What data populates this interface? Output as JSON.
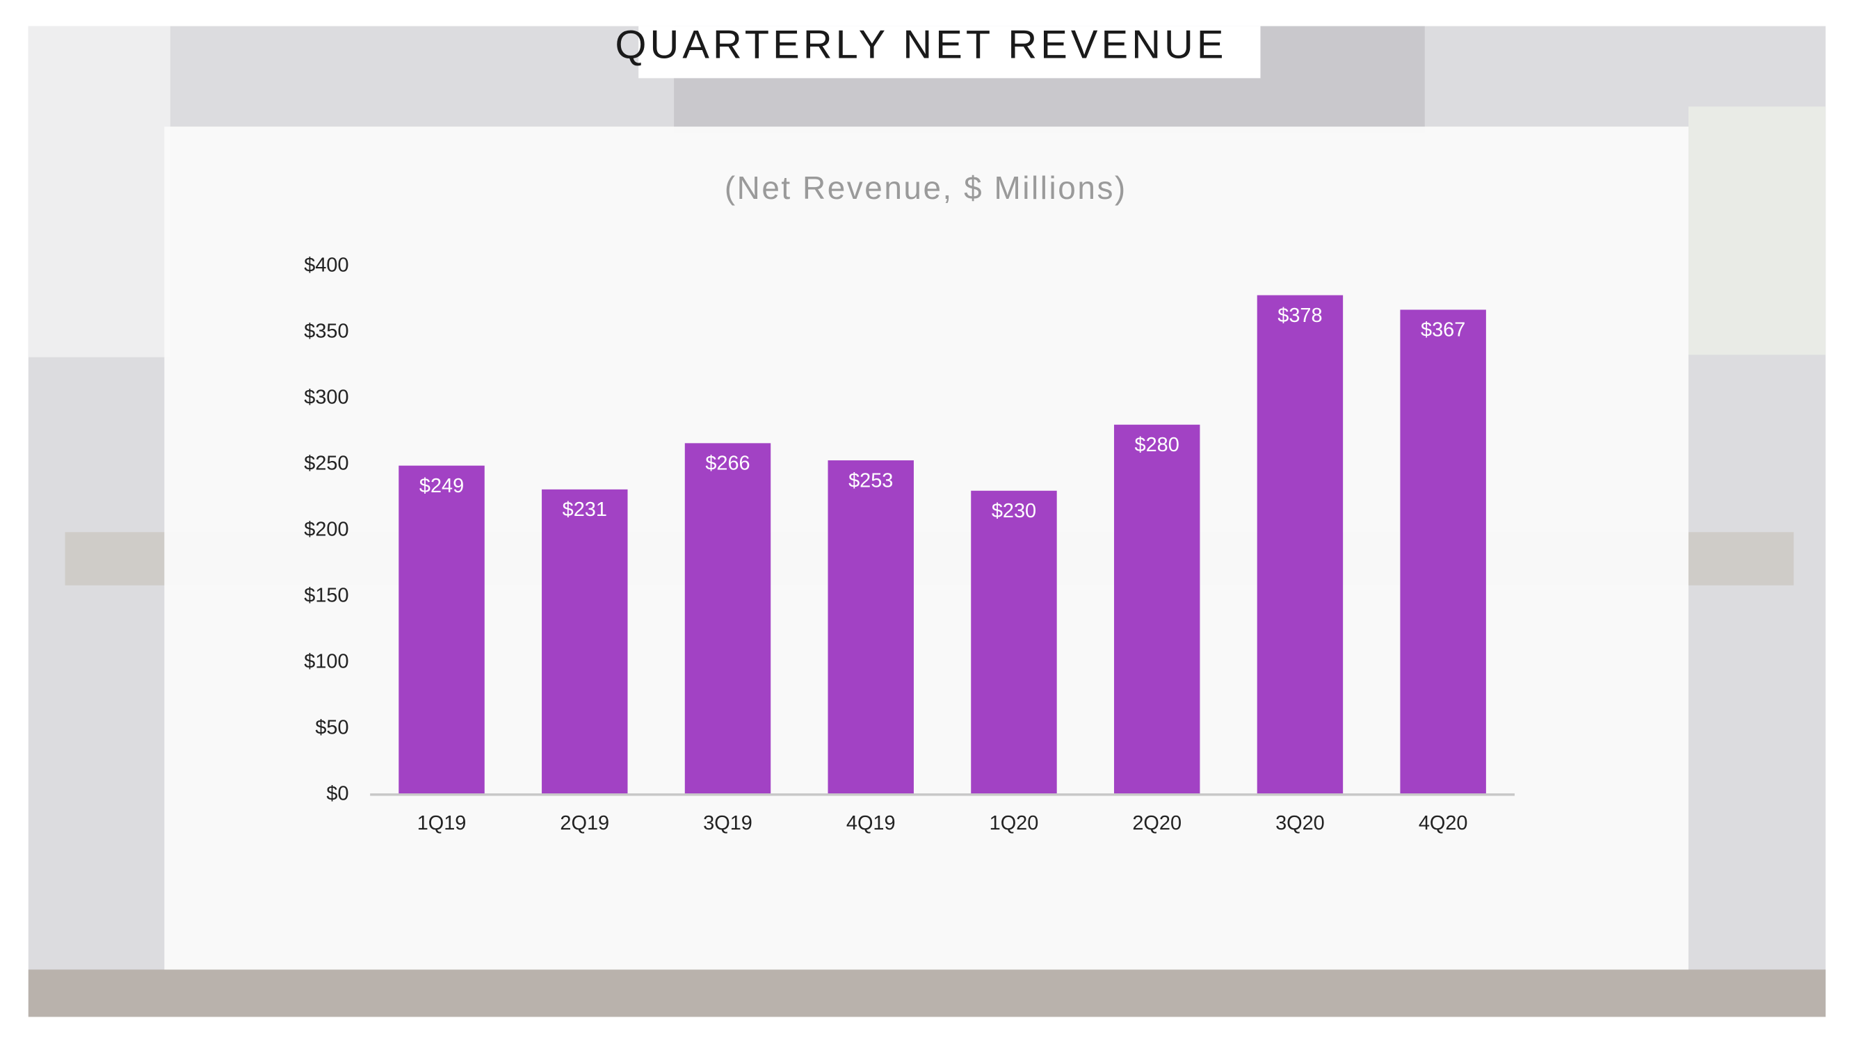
{
  "chart_data": {
    "type": "bar",
    "title": "QUARTERLY NET REVENUE",
    "subtitle": "(Net Revenue, $ Millions)",
    "categories": [
      "1Q19",
      "2Q19",
      "3Q19",
      "4Q19",
      "1Q20",
      "2Q20",
      "3Q20",
      "4Q20"
    ],
    "values": [
      249,
      231,
      266,
      253,
      230,
      280,
      378,
      367
    ],
    "value_labels": [
      "$249",
      "$231",
      "$266",
      "$253",
      "$230",
      "$280",
      "$378",
      "$367"
    ],
    "color": "#a242c4",
    "ylim": [
      0,
      400
    ],
    "yticks": [
      {
        "value": 0,
        "label": "$0"
      },
      {
        "value": 50,
        "label": "$50"
      },
      {
        "value": 100,
        "label": "$100"
      },
      {
        "value": 150,
        "label": "$150"
      },
      {
        "value": 200,
        "label": "$200"
      },
      {
        "value": 250,
        "label": "$250"
      },
      {
        "value": 300,
        "label": "$300"
      },
      {
        "value": 350,
        "label": "$350"
      },
      {
        "value": 400,
        "label": "$400"
      }
    ],
    "grid": false
  }
}
